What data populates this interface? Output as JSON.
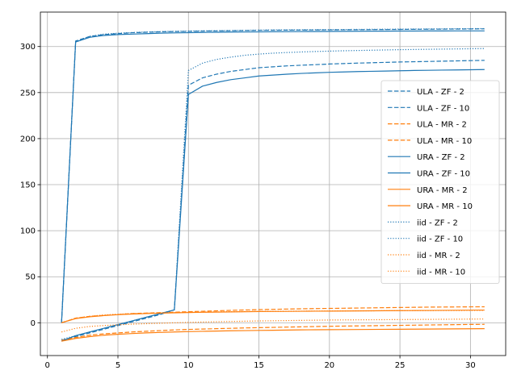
{
  "chart_data": {
    "type": "line",
    "title": "",
    "xlabel": "",
    "ylabel": "",
    "xlim": [
      -0.5,
      32.5
    ],
    "ylim": [
      -35.6,
      337.4
    ],
    "xticks": [
      0,
      5,
      10,
      15,
      20,
      25,
      30
    ],
    "yticks": [
      0,
      50,
      100,
      150,
      200,
      250,
      300
    ],
    "grid": true,
    "legend_position": "center-right",
    "x": [
      1,
      2,
      3,
      4,
      5,
      6,
      7,
      8,
      9,
      10,
      11,
      12,
      13,
      14,
      15,
      16,
      17,
      18,
      19,
      20,
      21,
      22,
      23,
      24,
      25,
      26,
      27,
      28,
      29,
      30,
      31
    ],
    "series": [
      {
        "name": "ULA - ZF - 2",
        "color": "#1f77b4",
        "dash": "dashed",
        "values": [
          0,
          306,
          311,
          313,
          314,
          315,
          315.5,
          316,
          316.3,
          316.5,
          316.8,
          317,
          317.2,
          317.4,
          317.6,
          317.7,
          317.8,
          317.9,
          318,
          318.1,
          318.2,
          318.3,
          318.4,
          318.5,
          318.6,
          318.7,
          318.8,
          318.9,
          319,
          319.1,
          319.2
        ]
      },
      {
        "name": "ULA - ZF - 10",
        "color": "#1f77b4",
        "dash": "dashed",
        "values": [
          -19,
          -15,
          -11,
          -7,
          -3,
          1,
          5,
          9,
          14,
          258,
          266,
          270,
          273,
          275,
          277,
          278,
          279,
          279.7,
          280.3,
          281,
          281.5,
          282,
          282.4,
          282.8,
          283.2,
          283.5,
          283.8,
          284.1,
          284.4,
          284.7,
          285
        ]
      },
      {
        "name": "ULA - MR - 2",
        "color": "#ff7f0e",
        "dash": "dashed",
        "values": [
          0,
          5,
          7,
          8,
          9,
          10,
          10.5,
          11,
          11.5,
          12,
          12.5,
          13,
          13.5,
          13.9,
          14.3,
          14.6,
          14.9,
          15.2,
          15.4,
          15.6,
          15.8,
          16,
          16.2,
          16.4,
          16.6,
          16.8,
          17,
          17.1,
          17.2,
          17.3,
          17.4
        ]
      },
      {
        "name": "ULA - MR - 10",
        "color": "#ff7f0e",
        "dash": "dashed",
        "values": [
          -19,
          -16,
          -13.5,
          -12,
          -11,
          -10,
          -9.2,
          -8.5,
          -7.8,
          -7.2,
          -6.8,
          -6.4,
          -6,
          -5.6,
          -5.3,
          -5,
          -4.7,
          -4.4,
          -4.1,
          -3.8,
          -3.6,
          -3.4,
          -3.2,
          -3,
          -2.8,
          -2.6,
          -2.4,
          -2.2,
          -2,
          -1.8,
          -1.7
        ]
      },
      {
        "name": "URA - ZF - 2",
        "color": "#1f77b4",
        "dash": "solid",
        "values": [
          0,
          305,
          310,
          312,
          313,
          313.5,
          314,
          314.5,
          314.8,
          315,
          315.3,
          315.5,
          315.7,
          315.8,
          315.9,
          316,
          316.1,
          316.2,
          316.3,
          316.4,
          316.5,
          316.6,
          316.7,
          316.7,
          316.8,
          316.8,
          316.9,
          316.9,
          317,
          317,
          317
        ]
      },
      {
        "name": "URA - ZF - 10",
        "color": "#1f77b4",
        "dash": "solid",
        "values": [
          -20,
          -14,
          -10,
          -6,
          -2,
          2,
          6,
          10,
          14,
          248,
          257,
          261,
          264,
          266,
          268,
          269,
          270,
          270.8,
          271.4,
          272,
          272.4,
          272.8,
          273.1,
          273.4,
          273.7,
          274,
          274.2,
          274.4,
          274.6,
          274.8,
          275
        ]
      },
      {
        "name": "URA - MR - 2",
        "color": "#ff7f0e",
        "dash": "solid",
        "values": [
          0,
          4.5,
          6.5,
          7.8,
          8.8,
          9.5,
          10,
          10.4,
          10.8,
          11.1,
          11.4,
          11.6,
          11.8,
          12,
          12.2,
          12.3,
          12.4,
          12.5,
          12.6,
          12.7,
          12.8,
          12.9,
          13,
          13.1,
          13.2,
          13.3,
          13.4,
          13.5,
          13.6,
          13.7,
          13.8
        ]
      },
      {
        "name": "URA - MR - 10",
        "color": "#ff7f0e",
        "dash": "solid",
        "values": [
          -20,
          -17,
          -15,
          -13.5,
          -12.5,
          -11.7,
          -11,
          -10.5,
          -10,
          -9.6,
          -9.3,
          -9,
          -8.7,
          -8.5,
          -8.3,
          -8.1,
          -7.9,
          -7.7,
          -7.6,
          -7.5,
          -7.4,
          -7.3,
          -7.2,
          -7.1,
          -7,
          -6.9,
          -6.8,
          -6.7,
          -6.6,
          -6.5,
          -6.4
        ]
      },
      {
        "name": "iid - ZF - 2",
        "color": "#1f77b4",
        "dash": "dotted",
        "values": [
          0,
          305,
          311,
          313.5,
          314.5,
          315.2,
          315.8,
          316.2,
          316.5,
          316.8,
          317,
          317.2,
          317.4,
          317.6,
          317.8,
          318,
          318.1,
          318.2,
          318.3,
          318.4,
          318.5,
          318.6,
          318.7,
          318.8,
          318.9,
          319,
          319.1,
          319.2,
          319.3,
          319.4,
          319.5
        ]
      },
      {
        "name": "iid - ZF - 10",
        "color": "#1f77b4",
        "dash": "dotted",
        "values": [
          -18,
          -14,
          -10,
          -6,
          -2,
          2,
          6,
          10,
          14,
          274,
          282,
          286,
          288.5,
          290.5,
          291.8,
          292.8,
          293.5,
          294.1,
          294.6,
          295,
          295.4,
          295.7,
          296,
          296.3,
          296.6,
          296.8,
          297,
          297.2,
          297.4,
          297.6,
          297.8
        ]
      },
      {
        "name": "iid - MR - 2",
        "color": "#ff7f0e",
        "dash": "dotted",
        "values": [
          0,
          5,
          7,
          8.5,
          9.3,
          10,
          10.4,
          10.8,
          11.1,
          11.4,
          11.6,
          11.8,
          12,
          12.2,
          12.3,
          12.4,
          12.5,
          12.6,
          12.7,
          12.8,
          12.9,
          13,
          13,
          13.1,
          13.1,
          13.2,
          13.2,
          13.3,
          13.3,
          13.4,
          13.4
        ]
      },
      {
        "name": "iid - MR - 10",
        "color": "#ff7f0e",
        "dash": "dotted",
        "values": [
          -10,
          -6,
          -4,
          -3,
          -2.2,
          -1.5,
          -1,
          -0.5,
          0,
          0.4,
          0.8,
          1.1,
          1.4,
          1.7,
          2,
          2.2,
          2.4,
          2.6,
          2.8,
          3,
          3.1,
          3.2,
          3.3,
          3.4,
          3.5,
          3.6,
          3.7,
          3.8,
          3.9,
          4,
          4.1
        ]
      }
    ]
  }
}
